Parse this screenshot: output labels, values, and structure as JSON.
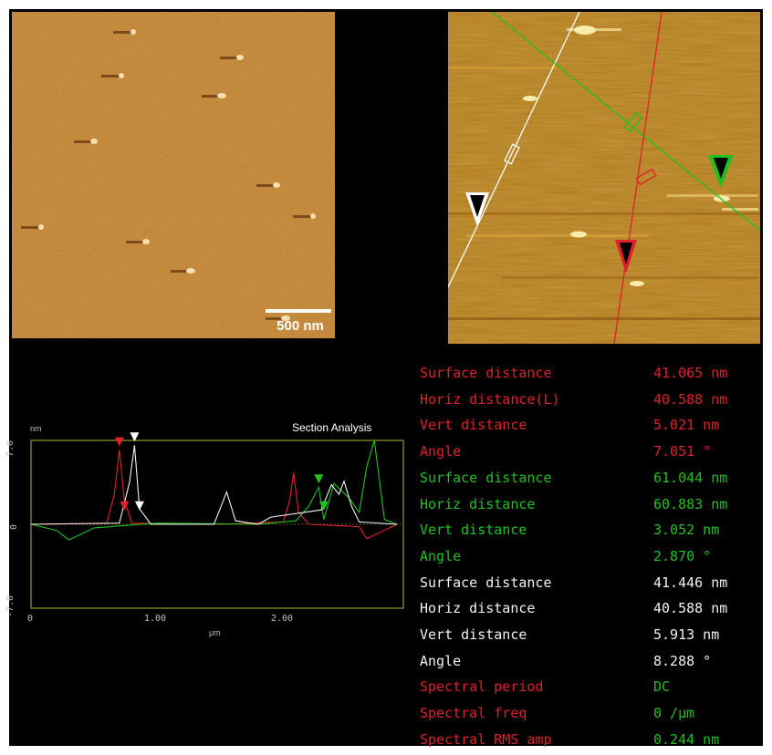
{
  "colors": {
    "red": "#e0202a",
    "green": "#1fc11f",
    "white": "#f2f2f2",
    "frame": "#b9b52c"
  },
  "scalebar": {
    "label": "500 nm"
  },
  "section_analysis": {
    "title": "Section Analysis",
    "y_unit": "nm",
    "x_unit": "μm",
    "y_ticks": [
      "7.0",
      "0",
      "-7.0"
    ],
    "x_ticks": [
      "0",
      "1.00",
      "2.00"
    ]
  },
  "chart_data": {
    "type": "line",
    "title": "Section Analysis",
    "xlabel": "μm",
    "ylabel": "nm",
    "xlim": [
      0,
      2.95
    ],
    "ylim": [
      -7.0,
      7.0
    ],
    "series": [
      {
        "color": "#e0202a",
        "x": [
          0.0,
          0.6,
          0.66,
          0.7,
          0.74,
          0.8,
          1.5,
          2.0,
          2.05,
          2.08,
          2.12,
          2.2,
          2.6,
          2.66,
          2.9
        ],
        "values": [
          0,
          0.1,
          2.5,
          6.2,
          2.0,
          0.1,
          0,
          0.2,
          2.0,
          4.3,
          1.0,
          0,
          -0.2,
          -1.2,
          0
        ]
      },
      {
        "color": "#1fc11f",
        "x": [
          0.0,
          0.2,
          0.3,
          0.5,
          1.0,
          1.8,
          2.1,
          2.2,
          2.28,
          2.32,
          2.4,
          2.52,
          2.6,
          2.66,
          2.72,
          2.8,
          2.9
        ],
        "values": [
          0,
          -0.5,
          -1.3,
          -0.3,
          0.1,
          0,
          0.3,
          1.5,
          3.1,
          0.4,
          3.4,
          2.2,
          1.0,
          4.8,
          7.0,
          0.4,
          0
        ]
      },
      {
        "color": "#f2f2f2",
        "x": [
          0.0,
          0.7,
          0.78,
          0.82,
          0.86,
          0.95,
          1.45,
          1.55,
          1.62,
          1.8,
          1.9,
          2.3,
          2.38,
          2.44,
          2.48,
          2.54,
          2.6,
          2.9
        ],
        "values": [
          0,
          0.1,
          3.5,
          6.6,
          1.3,
          0,
          0,
          2.7,
          0.3,
          0,
          0.6,
          1.2,
          3.3,
          2.5,
          3.6,
          1.5,
          0.2,
          0
        ]
      }
    ]
  },
  "readouts": [
    {
      "label": "Surface distance",
      "value": "41.065 nm",
      "color": "#e0202a"
    },
    {
      "label": "Horiz distance(L)",
      "value": "40.588 nm",
      "color": "#e0202a"
    },
    {
      "label": "Vert distance",
      "value": "5.021 nm",
      "color": "#e0202a"
    },
    {
      "label": "Angle",
      "value": "7.051 °",
      "color": "#e0202a"
    },
    {
      "label": "Surface distance",
      "value": "61.044 nm",
      "color": "#1fc11f"
    },
    {
      "label": "Horiz distance",
      "value": "60.883 nm",
      "color": "#1fc11f"
    },
    {
      "label": "Vert distance",
      "value": "3.052 nm",
      "color": "#1fc11f"
    },
    {
      "label": "Angle",
      "value": "2.870 °",
      "color": "#1fc11f"
    },
    {
      "label": "Surface distance",
      "value": "41.446 nm",
      "color": "#f2f2f2"
    },
    {
      "label": "Horiz distance",
      "value": "40.588 nm",
      "color": "#f2f2f2"
    },
    {
      "label": "Vert distance",
      "value": "5.913 nm",
      "color": "#f2f2f2"
    },
    {
      "label": "Angle",
      "value": "8.288 °",
      "color": "#f2f2f2"
    },
    {
      "label": "Spectral period",
      "value": "DC",
      "color": "#e0202a",
      "value_color": "#1fc11f"
    },
    {
      "label": "Spectral freq",
      "value": "0 /μm",
      "color": "#e0202a",
      "value_color": "#1fc11f"
    },
    {
      "label": "Spectral RMS amp",
      "value": "0.244 nm",
      "color": "#e0202a",
      "value_color": "#1fc11f"
    }
  ]
}
